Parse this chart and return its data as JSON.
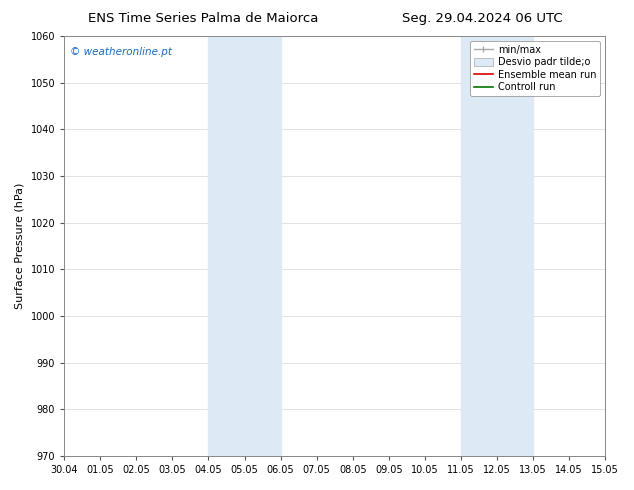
{
  "title_left": "ENS Time Series Palma de Maiorca",
  "title_right": "Seg. 29.04.2024 06 UTC",
  "ylabel": "Surface Pressure (hPa)",
  "ylim": [
    970,
    1060
  ],
  "yticks": [
    970,
    980,
    990,
    1000,
    1010,
    1020,
    1030,
    1040,
    1050,
    1060
  ],
  "xtick_labels": [
    "30.04",
    "01.05",
    "02.05",
    "03.05",
    "04.05",
    "05.05",
    "06.05",
    "07.05",
    "08.05",
    "09.05",
    "10.05",
    "11.05",
    "12.05",
    "13.05",
    "14.05",
    "15.05"
  ],
  "shaded_regions": [
    {
      "xstart": 4.0,
      "xend": 6.0,
      "color": "#ddeaf6"
    },
    {
      "xstart": 11.0,
      "xend": 13.0,
      "color": "#ddeaf6"
    }
  ],
  "watermark_text": "© weatheronline.pt",
  "watermark_color": "#1a6abf",
  "background_color": "#ffffff",
  "grid_color": "#dddddd",
  "tick_label_fontsize": 7,
  "axis_label_fontsize": 8,
  "title_fontsize": 9.5,
  "legend_fontsize": 7,
  "watermark_fontsize": 7.5
}
